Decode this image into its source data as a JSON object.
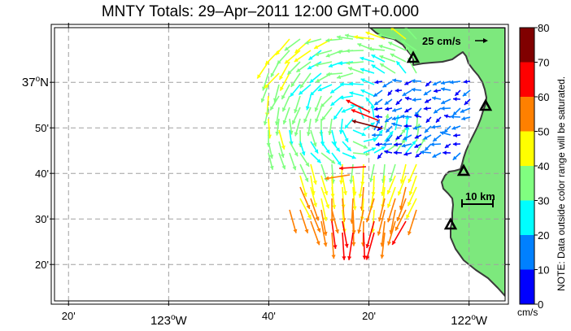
{
  "title": "MNTY Totals: 29–Apr–2011 12:00 GMT+0.000",
  "map": {
    "land_color": "#7de87d",
    "coast_color": "#3a3a3a",
    "lat_range": [
      37.2,
      36.2
    ],
    "lon_range": [
      -123.38,
      -121.88
    ],
    "lat_ticks": [
      {
        "value": 37.0,
        "label": "37",
        "suffix": "N",
        "major": true
      },
      {
        "value": 36.8333,
        "label": "50'",
        "major": false
      },
      {
        "value": 36.6667,
        "label": "40'",
        "major": false
      },
      {
        "value": 36.5,
        "label": "30'",
        "major": false
      },
      {
        "value": 36.3333,
        "label": "20'",
        "major": false
      }
    ],
    "lon_ticks": [
      {
        "value": -123.3333,
        "label": "20'",
        "major": false
      },
      {
        "value": -123.0,
        "label": "123",
        "suffix": "W",
        "major": true
      },
      {
        "value": -122.6667,
        "label": "40'",
        "major": false
      },
      {
        "value": -122.3333,
        "label": "20'",
        "major": false
      },
      {
        "value": -122.0,
        "label": "122",
        "suffix": "W",
        "major": true
      }
    ],
    "degree_symbol": "o",
    "reference_vector_label": "25 cm/s",
    "scale_bar_label": "10 km",
    "sites": [
      "site-1",
      "site-2",
      "site-3",
      "site-4"
    ]
  },
  "colorbar": {
    "ticks": [
      "80",
      "70",
      "60",
      "50",
      "40",
      "30",
      "20",
      "10",
      "0"
    ],
    "colors": [
      "#800000",
      "#ff0000",
      "#ff8000",
      "#ffff00",
      "#80ff80",
      "#00ffff",
      "#0080ff",
      "#0000ff"
    ],
    "unit": "cm/s",
    "note": "NOTE: Data outside color range will be saturated."
  }
}
